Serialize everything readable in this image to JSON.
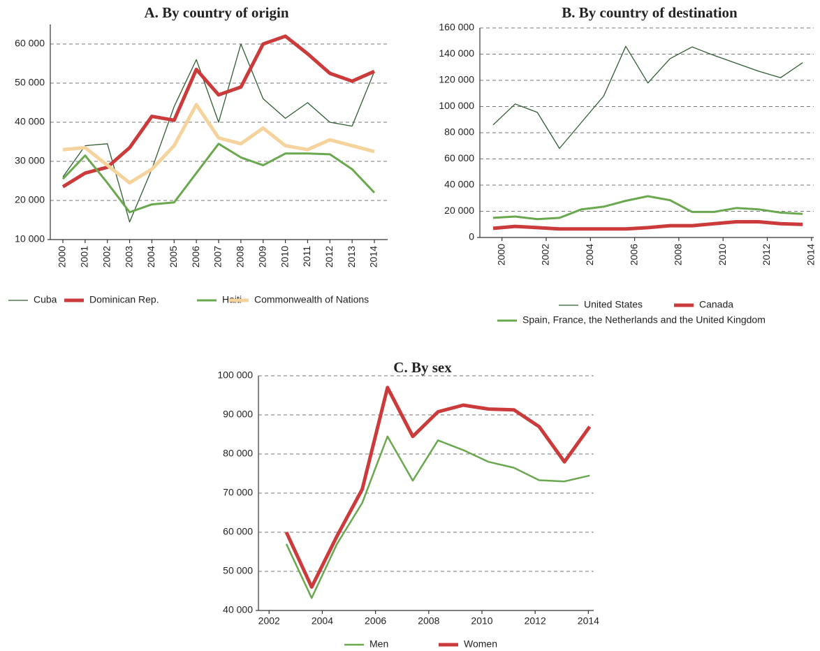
{
  "chart_data": [
    {
      "type": "line",
      "title": "A. By country of origin",
      "categories": [
        "2000",
        "2001",
        "2002",
        "2003",
        "2004",
        "2005",
        "2006",
        "2007",
        "2008",
        "2009",
        "2010",
        "2011",
        "2012",
        "2013",
        "2014"
      ],
      "series": [
        {
          "name": "Cuba",
          "color": "#2f5d2f",
          "values": [
            26000,
            34000,
            34500,
            14500,
            28000,
            44000,
            56000,
            40000,
            60000,
            46000,
            41000,
            45000,
            40000,
            39000,
            53000
          ]
        },
        {
          "name": "Dominican Rep.",
          "color": "#cc3b3b",
          "values": [
            23500,
            27000,
            28500,
            33500,
            41500,
            40500,
            53500,
            47000,
            49000,
            60000,
            62000,
            57500,
            52500,
            50500,
            53000
          ]
        },
        {
          "name": "Haiti",
          "color": "#6aa84f",
          "values": [
            25500,
            31500,
            24500,
            17000,
            19000,
            19500,
            27000,
            34500,
            31000,
            29000,
            32000,
            32000,
            31800,
            28000,
            22000
          ]
        },
        {
          "name": "Commonwealth of Nations",
          "color": "#f5d39c",
          "values": [
            33000,
            33500,
            29000,
            24500,
            28000,
            34000,
            44500,
            36000,
            34500,
            38500,
            34000,
            33000,
            35500,
            34000,
            32500
          ]
        }
      ],
      "ylim": [
        10000,
        65000
      ],
      "yticks": [
        {
          "value": 10000,
          "label": "10 000"
        },
        {
          "value": 20000,
          "label": "20 000"
        },
        {
          "value": 30000,
          "label": "30 000"
        },
        {
          "value": 40000,
          "label": "40 000"
        },
        {
          "value": 50000,
          "label": "50 000"
        },
        {
          "value": 60000,
          "label": "60 000"
        }
      ],
      "grid": true
    },
    {
      "type": "line",
      "title": "B. By country of destination",
      "x": [
        1999.6,
        2000.6,
        2001.6,
        2002.6,
        2003.6,
        2004.6,
        2005.6,
        2006.6,
        2007.6,
        2008.6,
        2009.6,
        2010.6,
        2011.6,
        2012.6,
        2013.6
      ],
      "series": [
        {
          "name": "United States",
          "color": "#2f5d2f",
          "values": [
            86000,
            102000,
            95500,
            68000,
            88000,
            108000,
            146000,
            118000,
            136500,
            145500,
            139000,
            133000,
            127000,
            122000,
            133500
          ]
        },
        {
          "name": "Canada",
          "color": "#cc3b3b",
          "values": [
            7000,
            8500,
            7500,
            6500,
            6500,
            6500,
            6500,
            7500,
            9000,
            9000,
            10500,
            12000,
            12000,
            10500,
            10000
          ]
        },
        {
          "name": "Spain, France, the Netherlands and the United Kingdom",
          "color": "#6aa84f",
          "values": [
            15000,
            16000,
            14000,
            15000,
            21500,
            23500,
            28000,
            31500,
            28500,
            19500,
            19500,
            22500,
            21500,
            19000,
            18000
          ]
        }
      ],
      "xlim": [
        1999,
        2014.1
      ],
      "xticks": [
        2000,
        2002,
        2004,
        2006,
        2008,
        2010,
        2012,
        2014
      ],
      "ylim": [
        0,
        160000
      ],
      "yticks": [
        0,
        {
          "value": 20000,
          "label": "20 000"
        },
        {
          "value": 40000,
          "label": "40 000"
        },
        {
          "value": 60000,
          "label": "60 000"
        },
        {
          "value": 80000,
          "label": "80 000"
        },
        {
          "value": 100000,
          "label": "100 000"
        },
        {
          "value": 120000,
          "label": "120 000"
        },
        {
          "value": 140000,
          "label": "140 000"
        },
        {
          "value": 160000,
          "label": "160 000"
        }
      ],
      "grid": true
    },
    {
      "type": "line",
      "title": "C. By sex",
      "x": [
        2002.65,
        2003.6,
        2004.55,
        2005.5,
        2006.45,
        2007.4,
        2008.35,
        2009.3,
        2010.25,
        2011.2,
        2012.15,
        2013.1,
        2014.05
      ],
      "series": [
        {
          "name": "Men",
          "color": "#6aa84f",
          "values": [
            57000,
            43200,
            57000,
            67500,
            84500,
            73200,
            83500,
            81000,
            78000,
            76500,
            73300,
            73000,
            74500
          ]
        },
        {
          "name": "Women",
          "color": "#cc3b3b",
          "values": [
            60000,
            46000,
            59000,
            71000,
            97000,
            84500,
            90800,
            92500,
            91500,
            91300,
            87000,
            78000,
            87000
          ]
        }
      ],
      "xlim": [
        2001.6,
        2014.2
      ],
      "xticks": [
        2002,
        2004,
        2006,
        2008,
        2010,
        2012,
        2014
      ],
      "ylim": [
        40000,
        100000
      ],
      "yticks": [
        {
          "value": 40000,
          "label": "40 000"
        },
        {
          "value": 50000,
          "label": "50 000"
        },
        {
          "value": 60000,
          "label": "60 000"
        },
        {
          "value": 70000,
          "label": "70 000"
        },
        {
          "value": 80000,
          "label": "80 000"
        },
        {
          "value": 90000,
          "label": "90 000"
        },
        {
          "value": 100000,
          "label": "100 000"
        }
      ],
      "grid": true
    }
  ]
}
